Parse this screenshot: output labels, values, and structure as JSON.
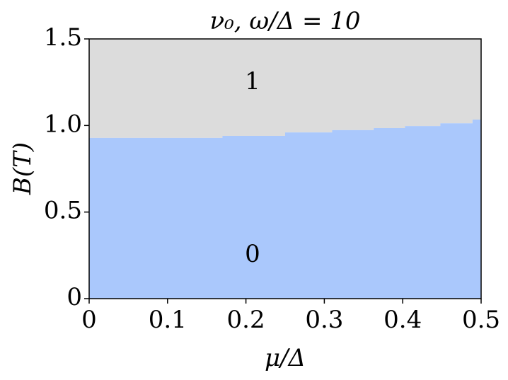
{
  "chart_data": {
    "type": "phase",
    "title": "ν₀, ω/Δ = 10",
    "xlabel": "μ/Δ",
    "ylabel": "B(T)",
    "x": [
      0,
      0.17,
      0.17,
      0.25,
      0.25,
      0.31,
      0.31,
      0.363,
      0.363,
      0.403,
      0.403,
      0.448,
      0.448,
      0.489,
      0.489,
      0.5
    ],
    "values": [
      0.928,
      0.928,
      0.94,
      0.94,
      0.96,
      0.96,
      0.973,
      0.973,
      0.985,
      0.985,
      0.997,
      0.997,
      1.013,
      1.013,
      1.034,
      1.034
    ],
    "colors": {
      "below": "#aac8fc",
      "above": "#dcdcdc"
    },
    "region_labels": [
      "1",
      "0"
    ],
    "xlim": [
      0,
      0.5
    ],
    "xticks": [
      0,
      0.1,
      0.2,
      0.3,
      0.4,
      0.5
    ],
    "ylim": [
      0,
      1.5
    ],
    "yticks": [
      0,
      0.5,
      {
        "value": 1,
        "label": "1.0"
      },
      1.5
    ]
  }
}
